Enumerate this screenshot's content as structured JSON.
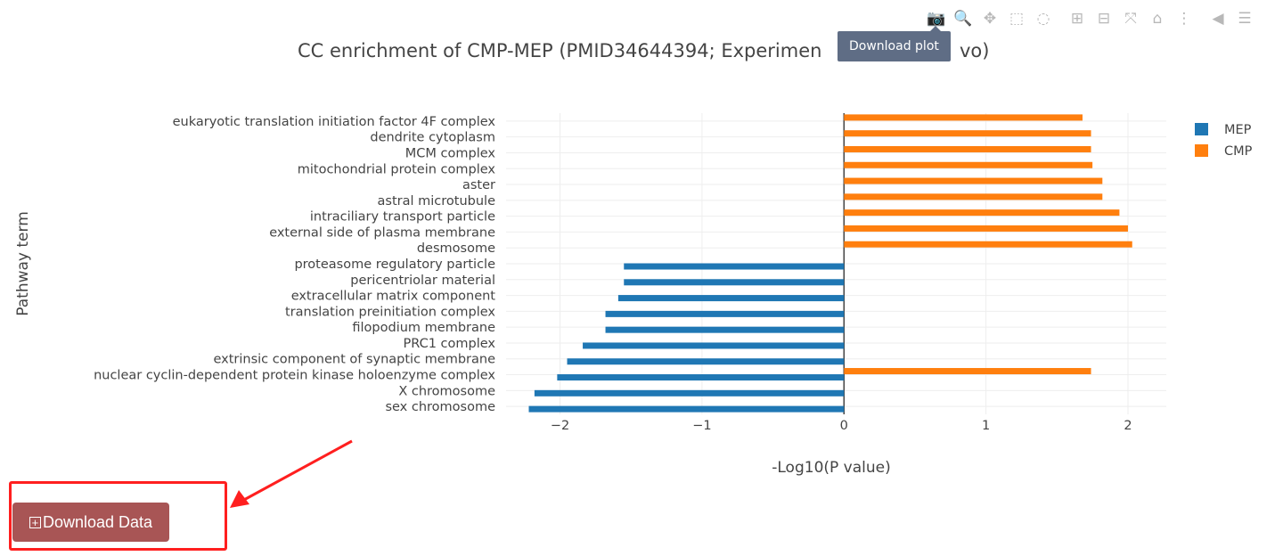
{
  "toolbar": {
    "buttons": [
      {
        "icon": "camera-icon",
        "glyph": "📷",
        "label": "Download plot"
      },
      {
        "icon": "zoom-icon",
        "glyph": "🔍",
        "label": "Zoom"
      },
      {
        "icon": "pan-icon",
        "glyph": "✥",
        "label": "Pan"
      },
      {
        "icon": "box-select-icon",
        "glyph": "⬚",
        "label": "Box Select"
      },
      {
        "icon": "lasso-select-icon",
        "glyph": "◌",
        "label": "Lasso Select"
      },
      {
        "icon": "zoom-in-icon",
        "glyph": "⊞",
        "label": "Zoom in"
      },
      {
        "icon": "zoom-out-icon",
        "glyph": "⊟",
        "label": "Zoom out"
      },
      {
        "icon": "autoscale-icon",
        "glyph": "⤧",
        "label": "Autoscale"
      },
      {
        "icon": "home-icon",
        "glyph": "⌂",
        "label": "Reset axes"
      },
      {
        "icon": "spike-lines-icon",
        "glyph": "⋮",
        "label": "Toggle Spike Lines"
      },
      {
        "icon": "hover-closest-icon",
        "glyph": "◀",
        "label": "Show closest data on hover"
      },
      {
        "icon": "hover-compare-icon",
        "glyph": "☰",
        "label": "Compare data on hover"
      }
    ],
    "tooltip": "Download plot"
  },
  "download_button": {
    "label": "Download Data",
    "icon": "download-icon"
  },
  "colors": {
    "MEP": "#1f77b4",
    "CMP": "#ff7f0e",
    "button": "#a85555",
    "highlight": "#ff1f1f"
  },
  "chart_data": {
    "type": "bar",
    "orientation": "horizontal",
    "title": "CC enrichment of CMP-MEP  (PMID34644394; Experimen",
    "title_tail": "vo)",
    "xlabel": "-Log10(P value)",
    "ylabel": "Pathway term",
    "xlim": [
      -2.38,
      2.27
    ],
    "xticks": [
      -2,
      -1,
      0,
      1,
      2
    ],
    "xtick_labels": [
      "−2",
      "−1",
      "0",
      "1",
      "2"
    ],
    "grid": true,
    "legend_position": "top-right",
    "categories": [
      "eukaryotic translation initiation factor 4F complex",
      "dendrite cytoplasm",
      "MCM complex",
      "mitochondrial protein complex",
      "aster",
      "astral microtubule",
      "intraciliary transport particle",
      "external side of plasma membrane",
      "desmosome",
      "proteasome regulatory particle",
      "pericentriolar material",
      "extracellular matrix component",
      "translation preinitiation complex",
      "filopodium membrane",
      "PRC1 complex",
      "extrinsic component of synaptic membrane",
      "nuclear cyclin-dependent protein kinase holoenzyme complex",
      "X chromosome",
      "sex chromosome"
    ],
    "series": [
      {
        "name": "MEP",
        "values": [
          null,
          null,
          null,
          null,
          null,
          null,
          null,
          null,
          null,
          -1.55,
          -1.55,
          -1.59,
          -1.68,
          -1.68,
          -1.84,
          -1.95,
          -2.02,
          -2.18,
          -2.22
        ]
      },
      {
        "name": "CMP",
        "values": [
          1.68,
          1.74,
          1.74,
          1.75,
          1.82,
          1.82,
          1.94,
          2.0,
          2.03,
          null,
          null,
          null,
          null,
          null,
          null,
          null,
          1.74,
          null,
          null
        ]
      }
    ]
  }
}
